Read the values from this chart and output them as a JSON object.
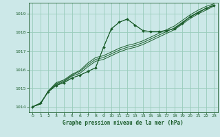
{
  "title": "Graphe pression niveau de la mer (hPa)",
  "bg_color": "#cce8e8",
  "grid_color": "#99ccbb",
  "line_color": "#1a5c2a",
  "xlim": [
    -0.5,
    23.5
  ],
  "ylim": [
    1013.7,
    1019.6
  ],
  "yticks": [
    1014,
    1015,
    1016,
    1017,
    1018,
    1019
  ],
  "xticks": [
    0,
    1,
    2,
    3,
    4,
    5,
    6,
    7,
    8,
    9,
    10,
    11,
    12,
    13,
    14,
    15,
    16,
    17,
    18,
    19,
    20,
    21,
    22,
    23
  ],
  "series": [
    [
      1014.0,
      1014.2,
      1014.8,
      1015.15,
      1015.3,
      1015.55,
      1015.7,
      1015.9,
      1016.1,
      1017.2,
      1018.2,
      1018.55,
      1018.72,
      1018.4,
      1018.1,
      1018.05,
      1018.05,
      1018.1,
      1018.2,
      1018.5,
      1018.85,
      1019.05,
      1019.3,
      1019.45
    ],
    [
      1014.0,
      1014.15,
      1014.85,
      1015.2,
      1015.35,
      1015.65,
      1015.8,
      1016.15,
      1016.45,
      1016.55,
      1016.75,
      1016.95,
      1017.1,
      1017.2,
      1017.35,
      1017.55,
      1017.75,
      1017.95,
      1018.15,
      1018.45,
      1018.75,
      1019.0,
      1019.2,
      1019.42
    ],
    [
      1014.0,
      1014.15,
      1014.85,
      1015.25,
      1015.4,
      1015.7,
      1015.9,
      1016.25,
      1016.55,
      1016.65,
      1016.85,
      1017.05,
      1017.2,
      1017.3,
      1017.45,
      1017.65,
      1017.85,
      1018.05,
      1018.25,
      1018.55,
      1018.85,
      1019.1,
      1019.3,
      1019.48
    ],
    [
      1014.0,
      1014.15,
      1014.85,
      1015.3,
      1015.45,
      1015.75,
      1015.95,
      1016.35,
      1016.65,
      1016.75,
      1016.95,
      1017.15,
      1017.3,
      1017.4,
      1017.55,
      1017.75,
      1017.95,
      1018.15,
      1018.35,
      1018.65,
      1018.95,
      1019.2,
      1019.4,
      1019.54
    ]
  ],
  "marker_y": [
    1014.0,
    1014.2,
    1014.8,
    1015.15,
    1015.3,
    1015.55,
    1015.7,
    1015.9,
    1016.1,
    1017.2,
    1018.2,
    1018.55,
    1018.72,
    1018.4,
    1018.1,
    1018.05,
    1018.05,
    1018.1,
    1018.2,
    1018.5,
    1018.85,
    1019.05,
    1019.3,
    1019.45
  ]
}
